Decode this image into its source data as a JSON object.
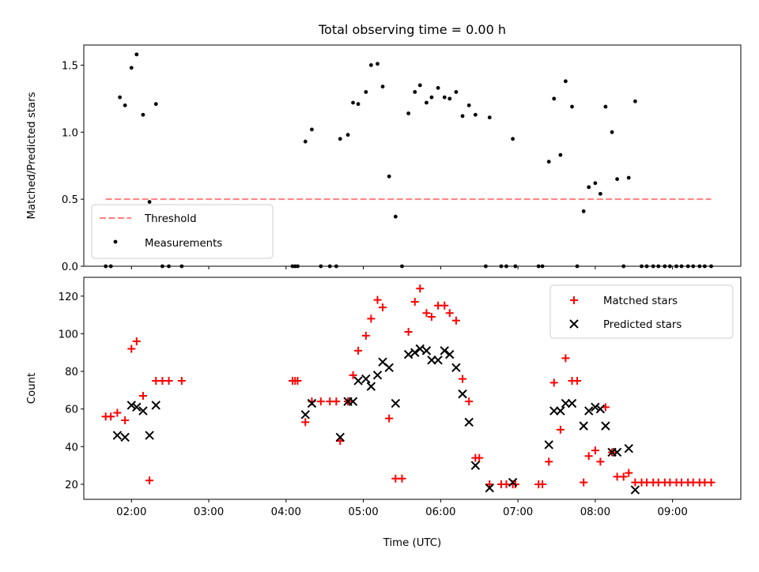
{
  "chart_data": [
    {
      "type": "scatter",
      "title": "Total observing time = 0.00 h",
      "xlabel": "",
      "ylabel": "Matched/Predicted stars",
      "xlim": [
        "01:23",
        "09:53"
      ],
      "ylim": [
        0,
        1.65
      ],
      "yticks": [
        0.0,
        0.5,
        1.0,
        1.5
      ],
      "ytick_labels": [
        "0.0",
        "0.5",
        "1.0",
        "1.5"
      ],
      "grid": false,
      "legend_position": "lower-left",
      "series": [
        {
          "name": "Threshold",
          "kind": "dashed-line",
          "color": "#ff7f7f",
          "x": [
            "01:40",
            "09:30"
          ],
          "y": [
            0.5,
            0.5
          ]
        },
        {
          "name": "Measurements",
          "kind": "points",
          "color": "#000000",
          "points": [
            [
              "01:40",
              0
            ],
            [
              "01:44",
              0
            ],
            [
              "01:51",
              1.26
            ],
            [
              "01:55",
              1.2
            ],
            [
              "02:00",
              1.48
            ],
            [
              "02:04",
              1.58
            ],
            [
              "02:09",
              1.13
            ],
            [
              "02:14",
              0.48
            ],
            [
              "02:19",
              1.21
            ],
            [
              "02:24",
              0
            ],
            [
              "02:29",
              0
            ],
            [
              "02:39",
              0
            ],
            [
              "04:05",
              0
            ],
            [
              "04:07",
              0
            ],
            [
              "04:09",
              0
            ],
            [
              "04:15",
              0.93
            ],
            [
              "04:20",
              1.02
            ],
            [
              "04:27",
              0
            ],
            [
              "04:34",
              0
            ],
            [
              "04:39",
              0
            ],
            [
              "04:42",
              0.95
            ],
            [
              "04:48",
              0.98
            ],
            [
              "04:52",
              1.22
            ],
            [
              "04:56",
              1.21
            ],
            [
              "05:02",
              1.3
            ],
            [
              "05:06",
              1.5
            ],
            [
              "05:11",
              1.51
            ],
            [
              "05:15",
              1.34
            ],
            [
              "05:20",
              0.67
            ],
            [
              "05:25",
              0.37
            ],
            [
              "05:30",
              0
            ],
            [
              "05:35",
              1.14
            ],
            [
              "05:40",
              1.3
            ],
            [
              "05:44",
              1.35
            ],
            [
              "05:49",
              1.22
            ],
            [
              "05:53",
              1.26
            ],
            [
              "05:58",
              1.33
            ],
            [
              "06:03",
              1.26
            ],
            [
              "06:07",
              1.25
            ],
            [
              "06:12",
              1.3
            ],
            [
              "06:17",
              1.12
            ],
            [
              "06:22",
              1.2
            ],
            [
              "06:27",
              1.13
            ],
            [
              "06:35",
              0
            ],
            [
              "06:38",
              1.11
            ],
            [
              "06:47",
              0
            ],
            [
              "06:51",
              0
            ],
            [
              "06:56",
              0.95
            ],
            [
              "06:58",
              0
            ],
            [
              "07:16",
              0
            ],
            [
              "07:19",
              0
            ],
            [
              "07:24",
              0.78
            ],
            [
              "07:28",
              1.25
            ],
            [
              "07:33",
              0.83
            ],
            [
              "07:37",
              1.38
            ],
            [
              "07:42",
              1.19
            ],
            [
              "07:46",
              0
            ],
            [
              "07:51",
              0.41
            ],
            [
              "07:55",
              0.59
            ],
            [
              "08:00",
              0.62
            ],
            [
              "08:04",
              0.54
            ],
            [
              "08:08",
              1.19
            ],
            [
              "08:13",
              1.0
            ],
            [
              "08:17",
              0.65
            ],
            [
              "08:22",
              0
            ],
            [
              "08:26",
              0.66
            ],
            [
              "08:31",
              1.23
            ],
            [
              "08:36",
              0
            ],
            [
              "08:40",
              0
            ],
            [
              "08:45",
              0
            ],
            [
              "08:49",
              0
            ],
            [
              "08:54",
              0
            ],
            [
              "08:58",
              0
            ],
            [
              "09:03",
              0
            ],
            [
              "09:07",
              0
            ],
            [
              "09:12",
              0
            ],
            [
              "09:16",
              0
            ],
            [
              "09:21",
              0
            ],
            [
              "09:25",
              0
            ],
            [
              "09:30",
              0
            ]
          ]
        }
      ]
    },
    {
      "type": "scatter",
      "title": "",
      "xlabel": "Time (UTC)",
      "ylabel": "Count",
      "xlim": [
        "01:23",
        "09:53"
      ],
      "ylim": [
        12,
        130
      ],
      "yticks": [
        20,
        40,
        60,
        80,
        100,
        120
      ],
      "ytick_labels": [
        "20",
        "40",
        "60",
        "80",
        "100",
        "120"
      ],
      "xticks": [
        "02:00",
        "03:00",
        "04:00",
        "05:00",
        "06:00",
        "07:00",
        "08:00",
        "09:00"
      ],
      "xtick_labels": [
        "02:00",
        "03:00",
        "04:00",
        "05:00",
        "06:00",
        "07:00",
        "08:00",
        "09:00"
      ],
      "grid": false,
      "legend_position": "upper-right",
      "series": [
        {
          "name": "Matched stars",
          "marker": "plus",
          "color": "#ff0000",
          "points": [
            [
              "01:40",
              56
            ],
            [
              "01:44",
              56
            ],
            [
              "01:49",
              58
            ],
            [
              "01:55",
              54
            ],
            [
              "02:00",
              92
            ],
            [
              "02:04",
              96
            ],
            [
              "02:09",
              67
            ],
            [
              "02:14",
              22
            ],
            [
              "02:19",
              75
            ],
            [
              "02:24",
              75
            ],
            [
              "02:29",
              75
            ],
            [
              "02:39",
              75
            ],
            [
              "04:05",
              75
            ],
            [
              "04:07",
              75
            ],
            [
              "04:09",
              75
            ],
            [
              "04:15",
              53
            ],
            [
              "04:20",
              64
            ],
            [
              "04:27",
              64
            ],
            [
              "04:34",
              64
            ],
            [
              "04:39",
              64
            ],
            [
              "04:42",
              43
            ],
            [
              "04:48",
              64
            ],
            [
              "04:52",
              78
            ],
            [
              "04:56",
              91
            ],
            [
              "05:02",
              99
            ],
            [
              "05:06",
              108
            ],
            [
              "05:11",
              118
            ],
            [
              "05:15",
              114
            ],
            [
              "05:20",
              55
            ],
            [
              "05:25",
              23
            ],
            [
              "05:30",
              23
            ],
            [
              "05:35",
              101
            ],
            [
              "05:40",
              117
            ],
            [
              "05:44",
              124
            ],
            [
              "05:49",
              111
            ],
            [
              "05:53",
              109
            ],
            [
              "05:58",
              115
            ],
            [
              "06:03",
              115
            ],
            [
              "06:07",
              111
            ],
            [
              "06:12",
              107
            ],
            [
              "06:17",
              76
            ],
            [
              "06:22",
              64
            ],
            [
              "06:27",
              34
            ],
            [
              "06:30",
              34
            ],
            [
              "06:38",
              20
            ],
            [
              "06:47",
              20
            ],
            [
              "06:51",
              20
            ],
            [
              "06:56",
              20
            ],
            [
              "06:58",
              20
            ],
            [
              "07:16",
              20
            ],
            [
              "07:19",
              20
            ],
            [
              "07:24",
              32
            ],
            [
              "07:28",
              74
            ],
            [
              "07:33",
              49
            ],
            [
              "07:37",
              87
            ],
            [
              "07:42",
              75
            ],
            [
              "07:46",
              75
            ],
            [
              "07:51",
              21
            ],
            [
              "07:55",
              35
            ],
            [
              "08:00",
              38
            ],
            [
              "08:04",
              32
            ],
            [
              "08:08",
              61
            ],
            [
              "08:13",
              37
            ],
            [
              "08:17",
              24
            ],
            [
              "08:22",
              24
            ],
            [
              "08:26",
              26
            ],
            [
              "08:31",
              21
            ],
            [
              "08:36",
              21
            ],
            [
              "08:40",
              21
            ],
            [
              "08:45",
              21
            ],
            [
              "08:49",
              21
            ],
            [
              "08:54",
              21
            ],
            [
              "08:58",
              21
            ],
            [
              "09:03",
              21
            ],
            [
              "09:07",
              21
            ],
            [
              "09:12",
              21
            ],
            [
              "09:16",
              21
            ],
            [
              "09:21",
              21
            ],
            [
              "09:25",
              21
            ],
            [
              "09:30",
              21
            ]
          ]
        },
        {
          "name": "Predicted stars",
          "marker": "x",
          "color": "#000000",
          "points": [
            [
              "01:49",
              46
            ],
            [
              "01:55",
              45
            ],
            [
              "02:00",
              62
            ],
            [
              "02:04",
              61
            ],
            [
              "02:09",
              59
            ],
            [
              "02:14",
              46
            ],
            [
              "02:19",
              62
            ],
            [
              "04:15",
              57
            ],
            [
              "04:20",
              63
            ],
            [
              "04:42",
              45
            ],
            [
              "04:48",
              64
            ],
            [
              "04:52",
              64
            ],
            [
              "04:56",
              75
            ],
            [
              "05:02",
              76
            ],
            [
              "05:06",
              72
            ],
            [
              "05:11",
              78
            ],
            [
              "05:15",
              85
            ],
            [
              "05:20",
              82
            ],
            [
              "05:25",
              63
            ],
            [
              "05:35",
              89
            ],
            [
              "05:40",
              90
            ],
            [
              "05:44",
              92
            ],
            [
              "05:49",
              91
            ],
            [
              "05:53",
              86
            ],
            [
              "05:58",
              86
            ],
            [
              "06:03",
              91
            ],
            [
              "06:07",
              89
            ],
            [
              "06:12",
              82
            ],
            [
              "06:17",
              68
            ],
            [
              "06:22",
              53
            ],
            [
              "06:27",
              30
            ],
            [
              "06:38",
              18
            ],
            [
              "06:56",
              21
            ],
            [
              "07:24",
              41
            ],
            [
              "07:28",
              59
            ],
            [
              "07:33",
              59
            ],
            [
              "07:37",
              63
            ],
            [
              "07:42",
              63
            ],
            [
              "07:51",
              51
            ],
            [
              "07:55",
              59
            ],
            [
              "08:00",
              61
            ],
            [
              "08:04",
              60
            ],
            [
              "08:08",
              51
            ],
            [
              "08:13",
              37
            ],
            [
              "08:17",
              37
            ],
            [
              "08:26",
              39
            ],
            [
              "08:31",
              17
            ]
          ]
        }
      ]
    }
  ]
}
